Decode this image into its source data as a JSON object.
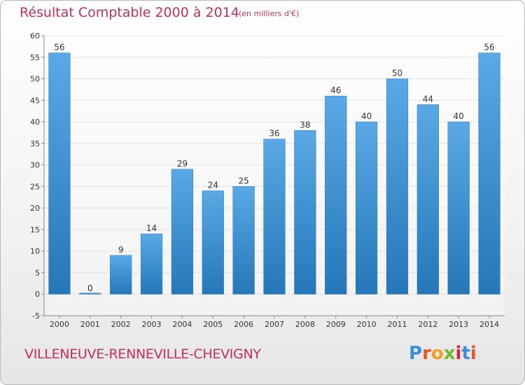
{
  "header": {
    "title": "Résultat Comptable 2000 à 2014",
    "subtitle": "(en milliers d'€)"
  },
  "footer": {
    "place": "VILLENEUVE-RENNEVILLE-CHEVIGNY",
    "logo_text": "Proxiti",
    "logo_colors": [
      "#3b8fd6",
      "#e4562b",
      "#f0a12a",
      "#76b82a",
      "#d7263d",
      "#3b8fd6",
      "#e4562b"
    ]
  },
  "colors": {
    "bar_light": "#5aa9e6",
    "bar_dark": "#2577b8",
    "grid": "#e2e2e2",
    "label": "#333333",
    "title": "#c0305a"
  },
  "chart_data": {
    "type": "bar",
    "title": "Résultat Comptable 2000 à 2014",
    "subtitle": "(en milliers d'€)",
    "xlabel": "",
    "ylabel": "",
    "categories": [
      "2000",
      "2001",
      "2002",
      "2003",
      "2004",
      "2005",
      "2006",
      "2007",
      "2008",
      "2009",
      "2010",
      "2011",
      "2012",
      "2013",
      "2014"
    ],
    "values": [
      56,
      0,
      9,
      14,
      29,
      24,
      25,
      36,
      38,
      46,
      40,
      50,
      44,
      40,
      56
    ],
    "ylim": [
      -5,
      60
    ],
    "yticks": [
      -5,
      0,
      5,
      10,
      15,
      20,
      25,
      30,
      35,
      40,
      45,
      50,
      55,
      60
    ],
    "grid": true
  }
}
